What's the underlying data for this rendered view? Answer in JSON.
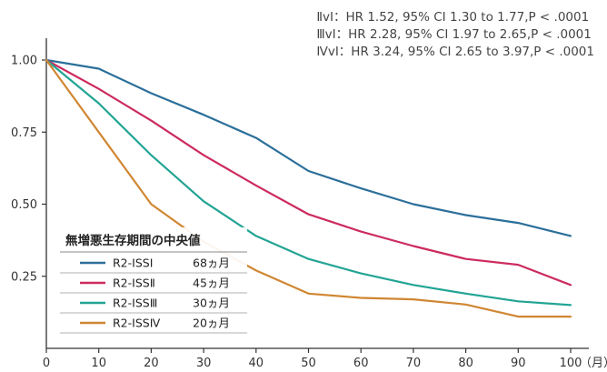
{
  "stats_lines": [
    "ⅡvⅠ：HR 1.52, 95% CI 1.30 to 1.77,P < .0001",
    "ⅢvⅠ：HR 2.28, 95% CI 1.97 to 2.65,P < .0001",
    "ⅣvⅠ：HR 3.24, 95% CI 2.65 to 3.97,P < .0001"
  ],
  "chart_data": {
    "type": "line",
    "title": "",
    "xlabel": "（月）",
    "ylabel": "",
    "xlim": [
      0,
      100
    ],
    "ylim": [
      0,
      1
    ],
    "x_ticks": [
      0,
      10,
      20,
      30,
      40,
      50,
      60,
      70,
      80,
      90,
      100
    ],
    "y_ticks": [
      0.25,
      0.5,
      0.75,
      1.0
    ],
    "y_tick_labels": [
      "0.25",
      "0.50",
      "0.75",
      "1.00"
    ],
    "grid": false,
    "legend": {
      "title": "無増悪生存期間の中央値",
      "placement": "bottom-left"
    },
    "series": [
      {
        "name": "R2-ISSⅠ",
        "median": "68ヵ月",
        "color": "#2b6f9a",
        "x": [
          0,
          10,
          20,
          30,
          40,
          50,
          60,
          70,
          80,
          90,
          100
        ],
        "y": [
          1.0,
          0.97,
          0.885,
          0.81,
          0.73,
          0.615,
          0.555,
          0.5,
          0.462,
          0.435,
          0.39
        ]
      },
      {
        "name": "R2-ISSⅡ",
        "median": "45ヵ月",
        "color": "#cc2b5e",
        "x": [
          0,
          10,
          20,
          30,
          40,
          50,
          60,
          70,
          80,
          90,
          100
        ],
        "y": [
          1.0,
          0.9,
          0.79,
          0.67,
          0.565,
          0.465,
          0.405,
          0.355,
          0.31,
          0.29,
          0.22
        ]
      },
      {
        "name": "R2-ISSⅢ",
        "median": "30ヵ月",
        "color": "#22a494",
        "x": [
          0,
          10,
          20,
          30,
          40,
          50,
          60,
          70,
          80,
          90,
          100
        ],
        "y": [
          1.0,
          0.85,
          0.67,
          0.51,
          0.39,
          0.31,
          0.26,
          0.22,
          0.19,
          0.163,
          0.15
        ]
      },
      {
        "name": "R2-ISSⅣ",
        "median": "20ヵ月",
        "color": "#d08632",
        "x": [
          0,
          10,
          20,
          30,
          40,
          50,
          60,
          70,
          80,
          90,
          100
        ],
        "y": [
          1.0,
          0.75,
          0.5,
          0.37,
          0.27,
          0.19,
          0.175,
          0.17,
          0.152,
          0.11,
          0.11
        ]
      }
    ]
  }
}
